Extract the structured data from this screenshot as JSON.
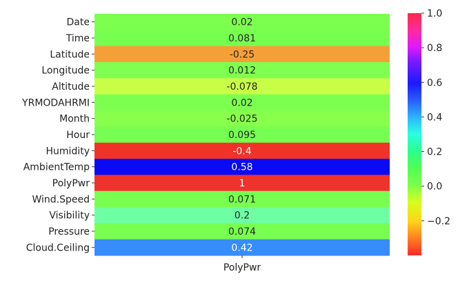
{
  "chart_data": {
    "type": "heatmap",
    "rows": [
      "Date",
      "Time",
      "Latitude",
      "Longitude",
      "Altitude",
      "YRMODAHRMI",
      "Month",
      "Hour",
      "Humidity",
      "AmbientTemp",
      "PolyPwr",
      "Wind.Speed",
      "Visibility",
      "Pressure",
      "Cloud.Ceiling"
    ],
    "columns": [
      "PolyPwr"
    ],
    "values": [
      0.02,
      0.081,
      -0.25,
      0.012,
      -0.078,
      0.02,
      -0.025,
      0.095,
      -0.4,
      0.58,
      1,
      0.071,
      0.2,
      0.074,
      0.42
    ],
    "value_labels": [
      "0.02",
      "0.081",
      "-0.25",
      "0.012",
      "-0.078",
      "0.02",
      "-0.025",
      "0.095",
      "-0.4",
      "0.58",
      "1",
      "0.071",
      "0.2",
      "0.074",
      "0.42"
    ],
    "colormap": "gist_rainbow",
    "colorbar": {
      "range": [
        -0.4,
        1.0
      ],
      "ticks": [
        -0.2,
        0.0,
        0.2,
        0.4,
        0.6,
        0.8,
        1.0
      ],
      "tick_labels": [
        "−0.2",
        "0.0",
        "0.2",
        "0.4",
        "0.6",
        "0.8",
        "1.0"
      ],
      "placement": "right"
    },
    "title": "",
    "xlabel": "",
    "ylabel": ""
  }
}
